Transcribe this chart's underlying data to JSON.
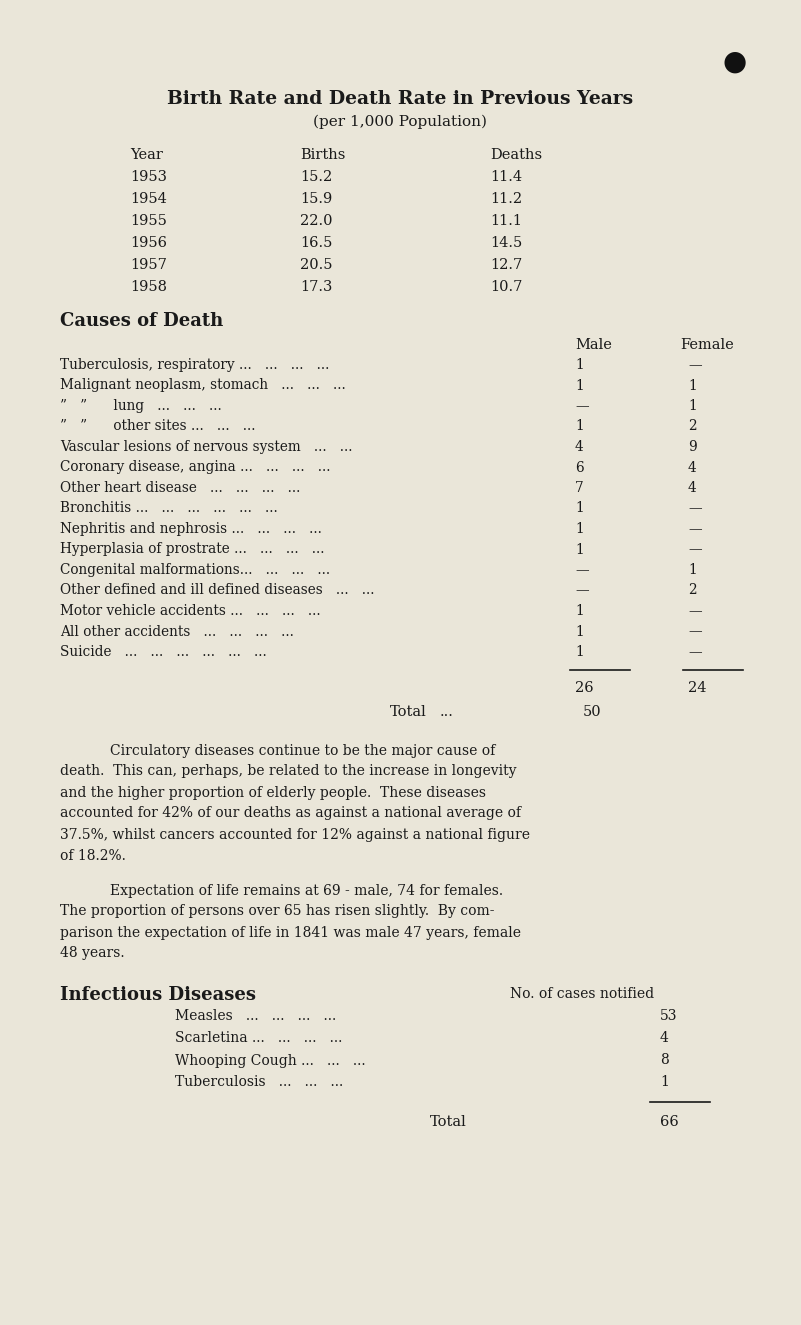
{
  "bg_color": "#eae6d9",
  "text_color": "#1a1a1a",
  "title": "Birth Rate and Death Rate in Previous Years",
  "subtitle": "(per 1,000 Population)",
  "years": [
    "1953",
    "1954",
    "1955",
    "1956",
    "1957",
    "1958"
  ],
  "births": [
    "15.2",
    "15.9",
    "22.0",
    "16.5",
    "20.5",
    "17.3"
  ],
  "deaths": [
    "11.4",
    "11.2",
    "11.1",
    "14.5",
    "12.7",
    "10.7"
  ],
  "causes_title": "Causes of Death",
  "cause_rows": [
    [
      "Tuberculosis, respiratory ...   ...   ...   ...",
      "1",
      "—"
    ],
    [
      "Malignant neoplasm, stomach   ...   ...   ...",
      "1",
      "1"
    ],
    [
      "”   ”      lung   ...   ...   ...",
      "—",
      "1"
    ],
    [
      "”   ”      other sites ...   ...   ...",
      "1",
      "2"
    ],
    [
      "Vascular lesions of nervous system   ...   ...",
      "4",
      "9"
    ],
    [
      "Coronary disease, angina ...   ...   ...   ...",
      "6",
      "4"
    ],
    [
      "Other heart disease   ...   ...   ...   ...",
      "7",
      "4"
    ],
    [
      "Bronchitis ...   ...   ...   ...   ...   ...",
      "1",
      "—"
    ],
    [
      "Nephritis and nephrosis ...   ...   ...   ...",
      "1",
      "—"
    ],
    [
      "Hyperplasia of prostrate ...   ...   ...   ...",
      "1",
      "—"
    ],
    [
      "Congenital malformations...   ...   ...   ...",
      "—",
      "1"
    ],
    [
      "Other defined and ill defined diseases   ...   ...",
      "—",
      "2"
    ],
    [
      "Motor vehicle accidents ...   ...   ...   ...",
      "1",
      "—"
    ],
    [
      "All other accidents   ...   ...   ...   ...",
      "1",
      "—"
    ],
    [
      "Suicide   ...   ...   ...   ...   ...   ...",
      "1",
      "—"
    ]
  ],
  "male_total": "26",
  "female_total": "24",
  "grand_total_label": "Total   ...",
  "grand_total": "50",
  "para1_lines": [
    "Circulatory diseases continue to be the major cause of",
    "death.  This can, perhaps, be related to the increase in longevity",
    "and the higher proportion of elderly people.  These diseases",
    "accounted for 42% of our deaths as against a national average of",
    "37.5%, whilst cancers accounted for 12% against a national figure",
    "of 18.2%."
  ],
  "para2_lines": [
    "Expectation of life remains at 69 - male, 74 for females.",
    "The proportion of persons over 65 has risen slightly.  By com-",
    "parison the expectation of life in 1841 was male 47 years, female",
    "48 years."
  ],
  "infect_title": "Infectious Diseases",
  "infect_header": "No. of cases notified",
  "infect_rows": [
    [
      "Measles   ...   ...   ...   ...",
      "53"
    ],
    [
      "Scarletina ...   ...   ...   ...",
      "4"
    ],
    [
      "Whooping Cough ...   ...   ...",
      "8"
    ],
    [
      "Tuberculosis   ...   ...   ...",
      "1"
    ]
  ],
  "infect_total": "66"
}
